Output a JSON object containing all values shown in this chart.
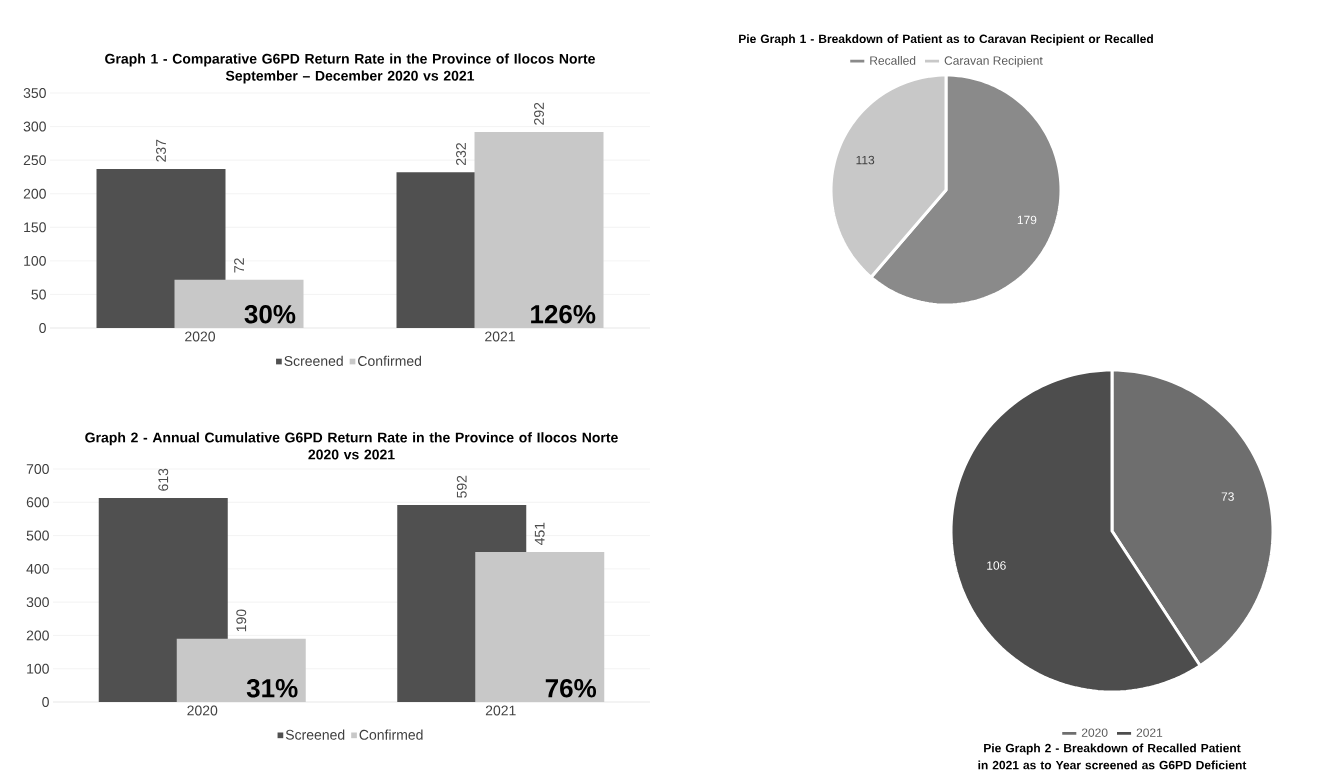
{
  "chart_data": [
    {
      "type": "bar",
      "title": "Graph 1 - Comparative G6PD Return Rate in the Province of Ilocos Norte",
      "subtitle": "September – December 2020 vs 2021",
      "categories": [
        "2020",
        "2021"
      ],
      "series": [
        {
          "name": "Screened",
          "color": "#505050",
          "values": [
            237,
            232
          ]
        },
        {
          "name": "Confirmed",
          "color": "#c8c8c8",
          "values": [
            72,
            292
          ]
        }
      ],
      "ylim": [
        0,
        350
      ],
      "yticks": [
        0,
        50,
        100,
        150,
        200,
        250,
        300,
        350
      ],
      "grid": "y",
      "legend": "bottom",
      "data_labels": true,
      "annotations": [
        "30%",
        "126%"
      ]
    },
    {
      "type": "bar",
      "title": "Graph 2 - Annual Cumulative G6PD Return Rate in the Province of Ilocos Norte",
      "subtitle": "2020 vs 2021",
      "categories": [
        "2020",
        "2021"
      ],
      "series": [
        {
          "name": "Screened",
          "color": "#505050",
          "values": [
            613,
            592
          ]
        },
        {
          "name": "Confirmed",
          "color": "#c8c8c8",
          "values": [
            190,
            451
          ]
        }
      ],
      "ylim": [
        0,
        700
      ],
      "yticks": [
        0,
        100,
        200,
        300,
        400,
        500,
        600,
        700
      ],
      "grid": "y",
      "legend": "bottom",
      "data_labels": true,
      "annotations": [
        "31%",
        "76%"
      ]
    },
    {
      "type": "pie",
      "title": "Pie Graph 1 - Breakdown of Patient as to Caravan Recipient or Recalled",
      "categories": [
        "Recalled",
        "Caravan Recipient"
      ],
      "values": [
        179,
        113
      ],
      "colors": [
        "#8a8a8a",
        "#c8c8c8"
      ],
      "legend": "top",
      "data_labels": true
    },
    {
      "type": "pie",
      "title": "Pie Graph 2 - Breakdown of Recalled Patient in 2021 as to Year screened as G6PD Deficient",
      "categories": [
        "2020",
        "2021"
      ],
      "values": [
        73,
        106
      ],
      "colors": [
        "#6e6e6e",
        "#4d4d4d"
      ],
      "legend": "bottom",
      "data_labels": true
    }
  ]
}
